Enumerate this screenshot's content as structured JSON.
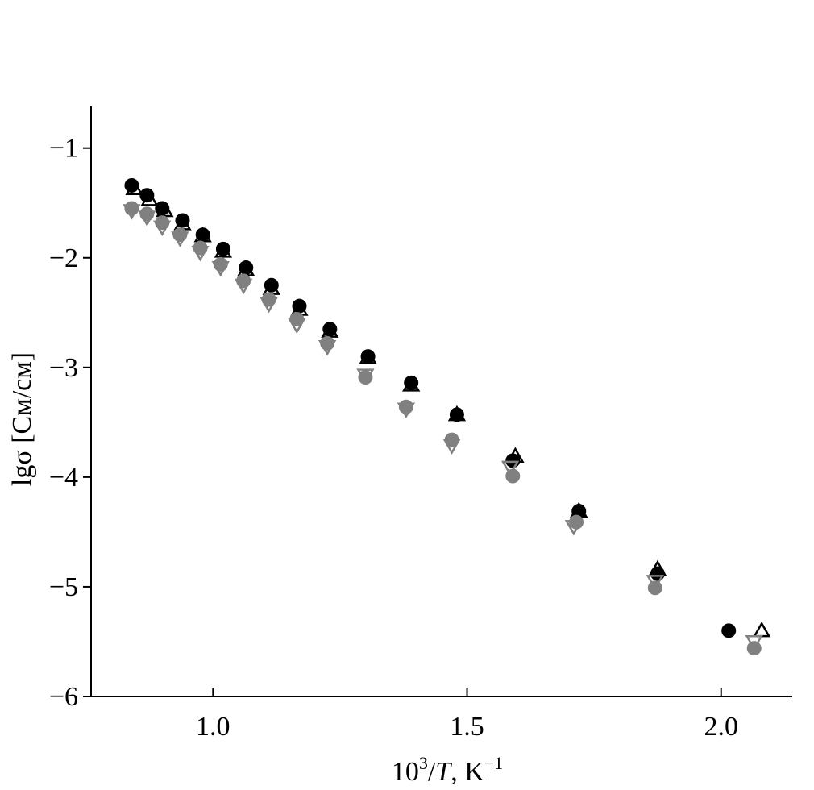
{
  "chart_data": {
    "type": "scatter",
    "title": "",
    "xlabel_parts": {
      "base": "10",
      "sup": "3",
      "slash": "/",
      "var": "T",
      "unit": ", K",
      "unit_sup": "−1"
    },
    "ylabel": "lgσ [См/см]",
    "xlim": [
      0.76,
      2.14
    ],
    "ylim": [
      -6,
      -0.62
    ],
    "x_ticks": [
      1.0,
      1.5,
      2.0
    ],
    "x_tick_labels": [
      "1.0",
      "1.5",
      "2.0"
    ],
    "y_ticks": [
      -6,
      -5,
      -4,
      -3,
      -2,
      -1
    ],
    "y_tick_labels": [
      "−6",
      "−5",
      "−4",
      "−3",
      "−2",
      "−1"
    ],
    "grid": false,
    "series": [
      {
        "marker": "circle-filled",
        "color": "#000000",
        "x": [
          0.84,
          0.87,
          0.9,
          0.94,
          0.98,
          1.02,
          1.065,
          1.115,
          1.17,
          1.23,
          1.305,
          1.39,
          1.48,
          1.59,
          1.72,
          1.875,
          2.015
        ],
        "y": [
          -1.34,
          -1.43,
          -1.55,
          -1.66,
          -1.79,
          -1.92,
          -2.09,
          -2.25,
          -2.44,
          -2.65,
          -2.9,
          -3.14,
          -3.43,
          -3.85,
          -4.31,
          -4.88,
          -5.4
        ]
      },
      {
        "marker": "triangle-up-open",
        "color": "#000000",
        "x": [
          0.845,
          0.875,
          0.905,
          0.94,
          0.98,
          1.02,
          1.065,
          1.115,
          1.17,
          1.23,
          1.305,
          1.39,
          1.48,
          1.595,
          1.72,
          1.875,
          2.08
        ],
        "y": [
          -1.37,
          -1.47,
          -1.57,
          -1.69,
          -1.8,
          -1.94,
          -2.11,
          -2.28,
          -2.47,
          -2.67,
          -2.91,
          -3.16,
          -3.43,
          -3.81,
          -4.31,
          -4.84,
          -5.4
        ]
      },
      {
        "marker": "circle-filled",
        "color": "#808080",
        "x": [
          0.84,
          0.87,
          0.9,
          0.935,
          0.975,
          1.015,
          1.06,
          1.11,
          1.165,
          1.225,
          1.3,
          1.38,
          1.47,
          1.59,
          1.715,
          1.87,
          2.065
        ],
        "y": [
          -1.55,
          -1.6,
          -1.68,
          -1.79,
          -1.91,
          -2.06,
          -2.21,
          -2.38,
          -2.56,
          -2.78,
          -3.09,
          -3.36,
          -3.66,
          -3.99,
          -4.41,
          -5.01,
          -5.56
        ]
      },
      {
        "marker": "triangle-down-open",
        "color": "#808080",
        "x": [
          0.84,
          0.87,
          0.9,
          0.935,
          0.975,
          1.015,
          1.06,
          1.11,
          1.165,
          1.225,
          1.3,
          1.38,
          1.47,
          1.585,
          1.71,
          1.87,
          2.065
        ],
        "y": [
          -1.57,
          -1.63,
          -1.72,
          -1.82,
          -1.95,
          -2.09,
          -2.25,
          -2.42,
          -2.61,
          -2.81,
          -3.07,
          -3.38,
          -3.71,
          -3.91,
          -4.45,
          -4.95,
          -5.5
        ]
      }
    ]
  }
}
